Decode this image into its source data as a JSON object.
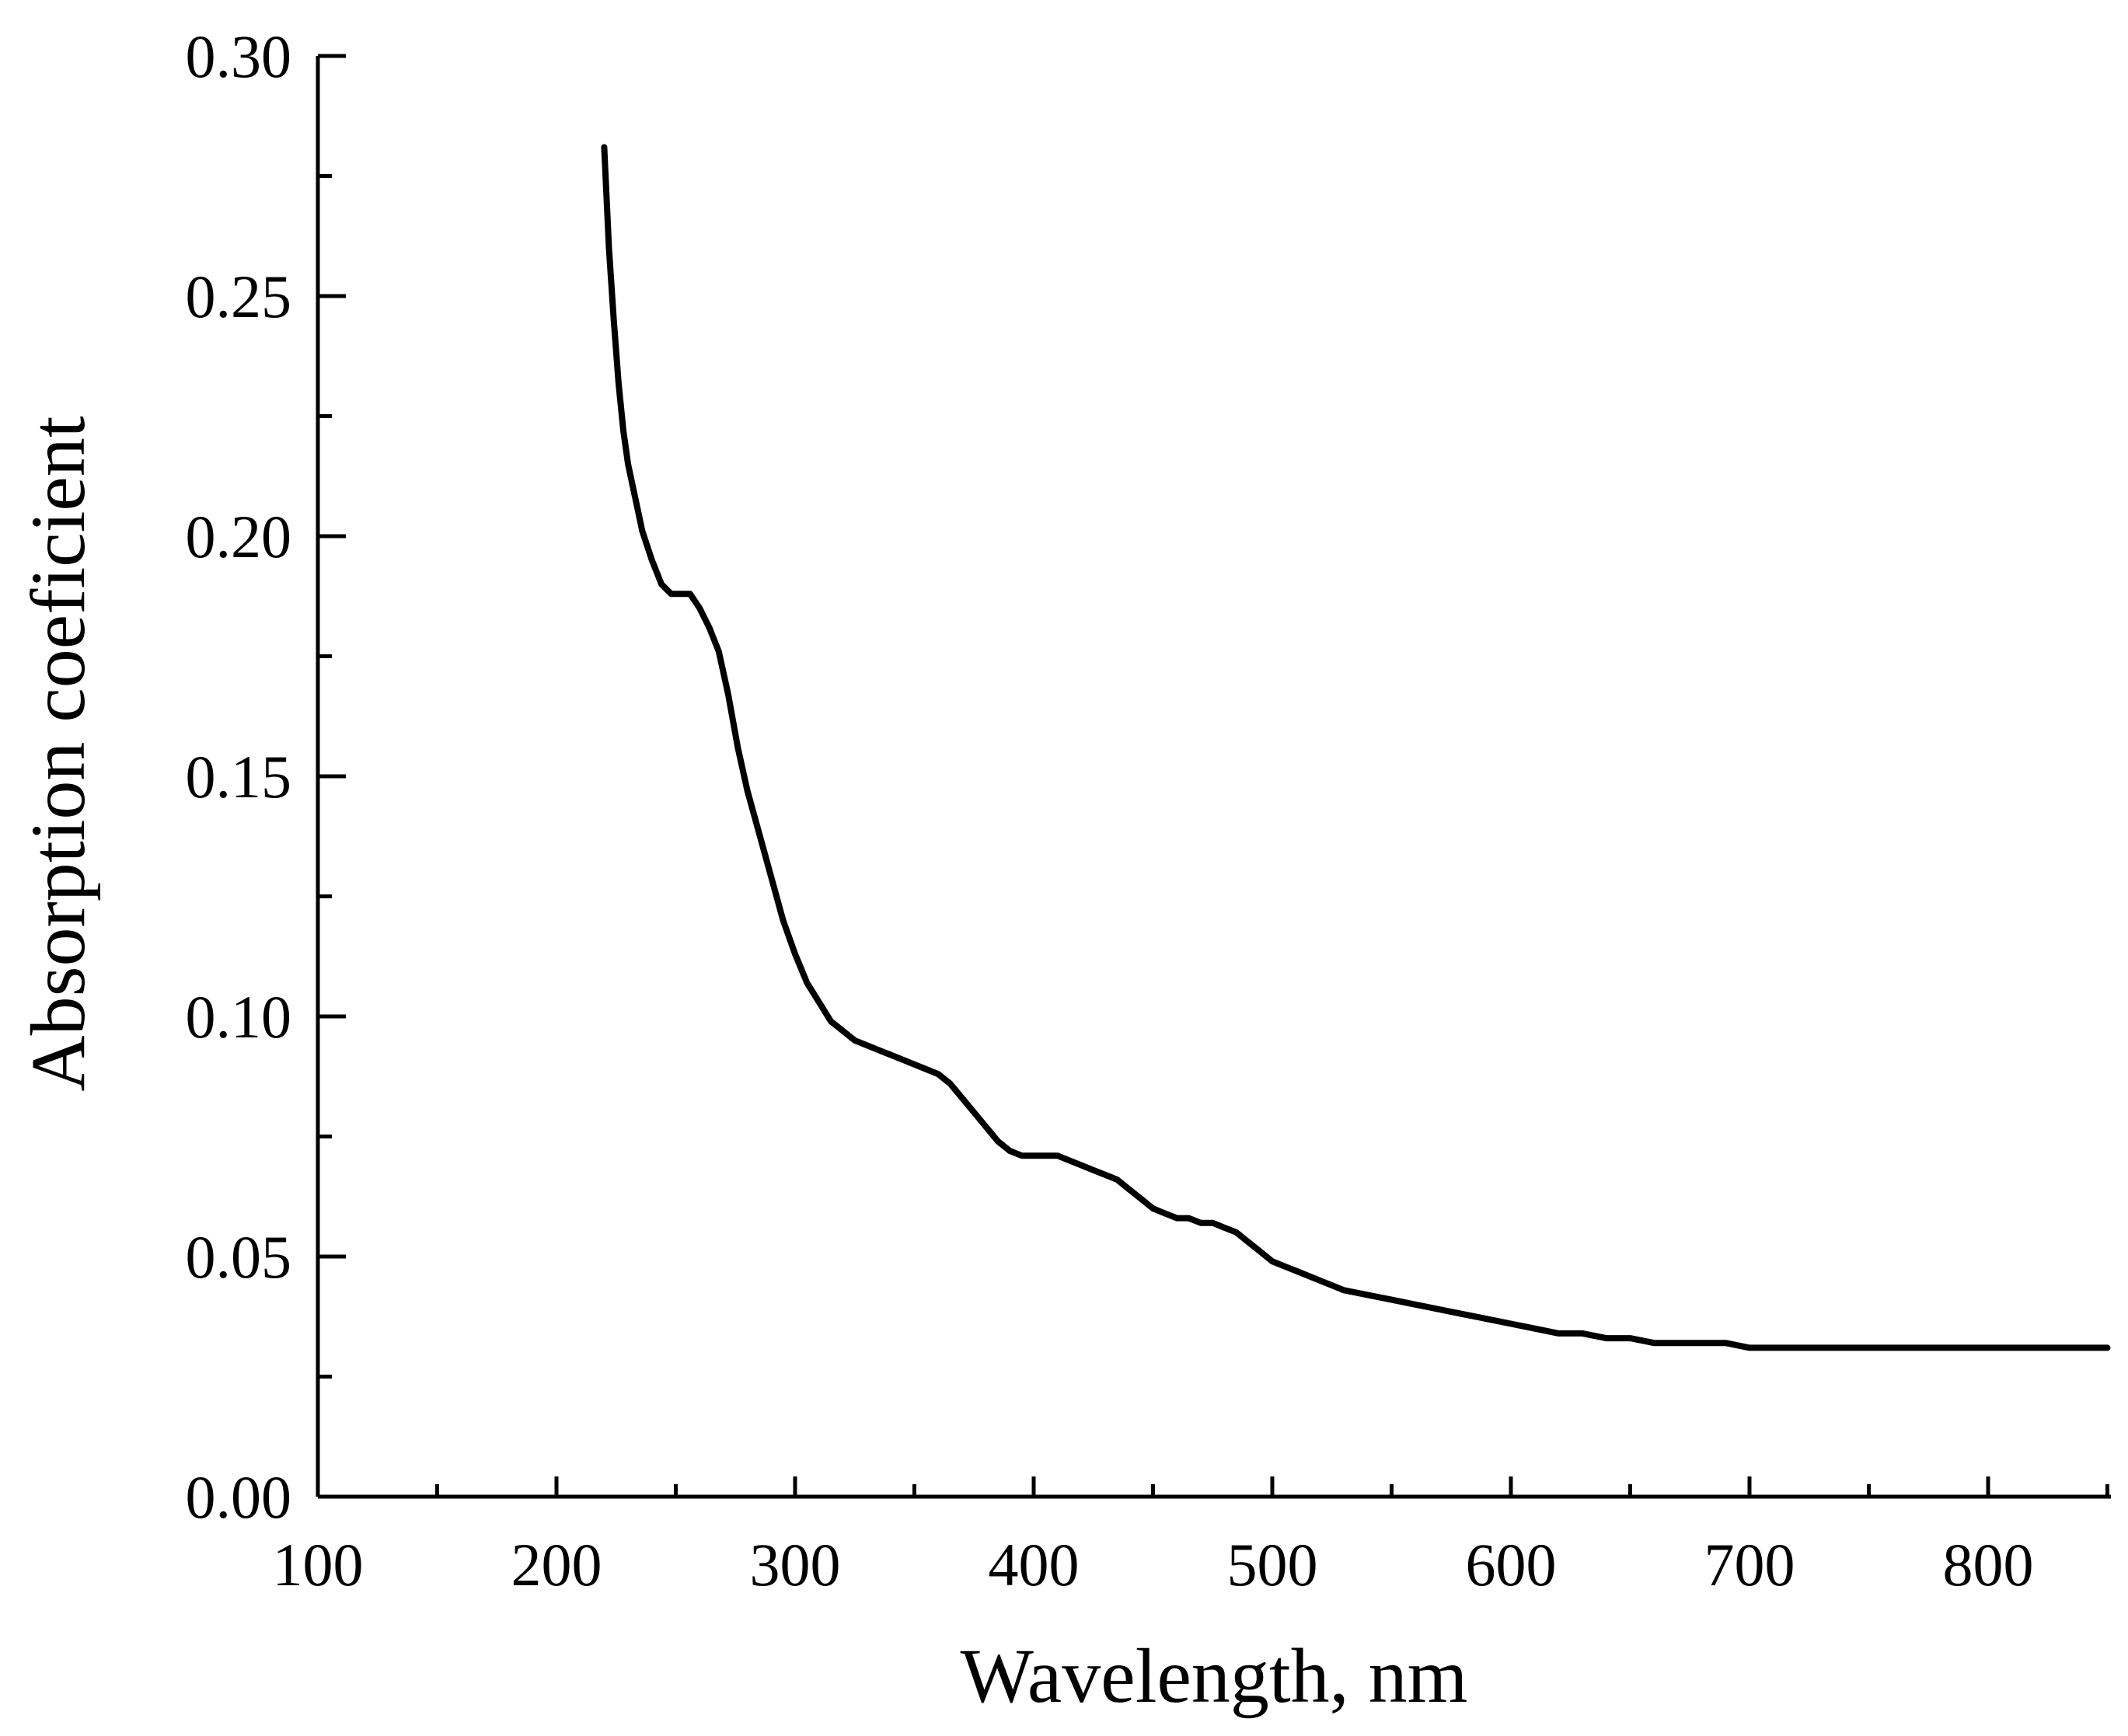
{
  "chart_data": {
    "type": "line",
    "title": "",
    "xlabel": "Wavelength, nm",
    "ylabel": "Absorption coeficient",
    "xlim": [
      100,
      850
    ],
    "ylim": [
      0.0,
      0.3
    ],
    "x_ticks": [
      100,
      200,
      300,
      400,
      500,
      600,
      700,
      800
    ],
    "x_tick_labels": [
      "100",
      "200",
      "300",
      "400",
      "500",
      "600",
      "700",
      "800"
    ],
    "x_minor_ticks": [
      150,
      250,
      350,
      450,
      550,
      650,
      750,
      850
    ],
    "y_ticks": [
      0.0,
      0.05,
      0.1,
      0.15,
      0.2,
      0.25,
      0.3
    ],
    "y_tick_labels": [
      "0.00",
      "0.05",
      "0.10",
      "0.15",
      "0.20",
      "0.25",
      "0.30"
    ],
    "y_minor_ticks": [
      0.025,
      0.075,
      0.125,
      0.175,
      0.225,
      0.275
    ],
    "grid": false,
    "line_color": "#000000",
    "series": [
      {
        "name": "Absorption coeficient",
        "x": [
          220,
          222,
          224,
          226,
          228,
          230,
          233,
          236,
          240,
          244,
          248,
          252,
          256,
          260,
          264,
          268,
          272,
          276,
          280,
          285,
          290,
          295,
          300,
          305,
          310,
          315,
          320,
          325,
          330,
          335,
          340,
          345,
          350,
          355,
          360,
          365,
          370,
          375,
          380,
          385,
          390,
          395,
          400,
          405,
          410,
          415,
          420,
          425,
          430,
          435,
          440,
          445,
          450,
          455,
          460,
          465,
          470,
          475,
          480,
          485,
          490,
          495,
          500,
          505,
          510,
          520,
          530,
          540,
          550,
          560,
          570,
          580,
          590,
          600,
          610,
          620,
          630,
          640,
          650,
          660,
          670,
          680,
          690,
          700,
          710,
          720,
          730,
          740,
          750,
          760,
          770,
          780,
          790,
          800,
          810,
          820,
          830,
          840,
          850
        ],
        "y": [
          0.281,
          0.26,
          0.245,
          0.232,
          0.222,
          0.215,
          0.208,
          0.201,
          0.195,
          0.19,
          0.188,
          0.188,
          0.188,
          0.185,
          0.181,
          0.176,
          0.167,
          0.156,
          0.147,
          0.138,
          0.129,
          0.12,
          0.113,
          0.107,
          0.103,
          0.099,
          0.097,
          0.095,
          0.094,
          0.093,
          0.092,
          0.091,
          0.09,
          0.089,
          0.088,
          0.086,
          0.083,
          0.08,
          0.077,
          0.074,
          0.072,
          0.071,
          0.071,
          0.071,
          0.071,
          0.07,
          0.069,
          0.068,
          0.067,
          0.066,
          0.064,
          0.062,
          0.06,
          0.059,
          0.058,
          0.058,
          0.057,
          0.057,
          0.056,
          0.055,
          0.053,
          0.051,
          0.049,
          0.048,
          0.047,
          0.045,
          0.043,
          0.042,
          0.041,
          0.04,
          0.039,
          0.038,
          0.037,
          0.036,
          0.035,
          0.034,
          0.034,
          0.033,
          0.033,
          0.032,
          0.032,
          0.032,
          0.032,
          0.031,
          0.031,
          0.031,
          0.031,
          0.031,
          0.031,
          0.031,
          0.031,
          0.031,
          0.031,
          0.031,
          0.031,
          0.031,
          0.031,
          0.031,
          0.031
        ]
      }
    ]
  }
}
